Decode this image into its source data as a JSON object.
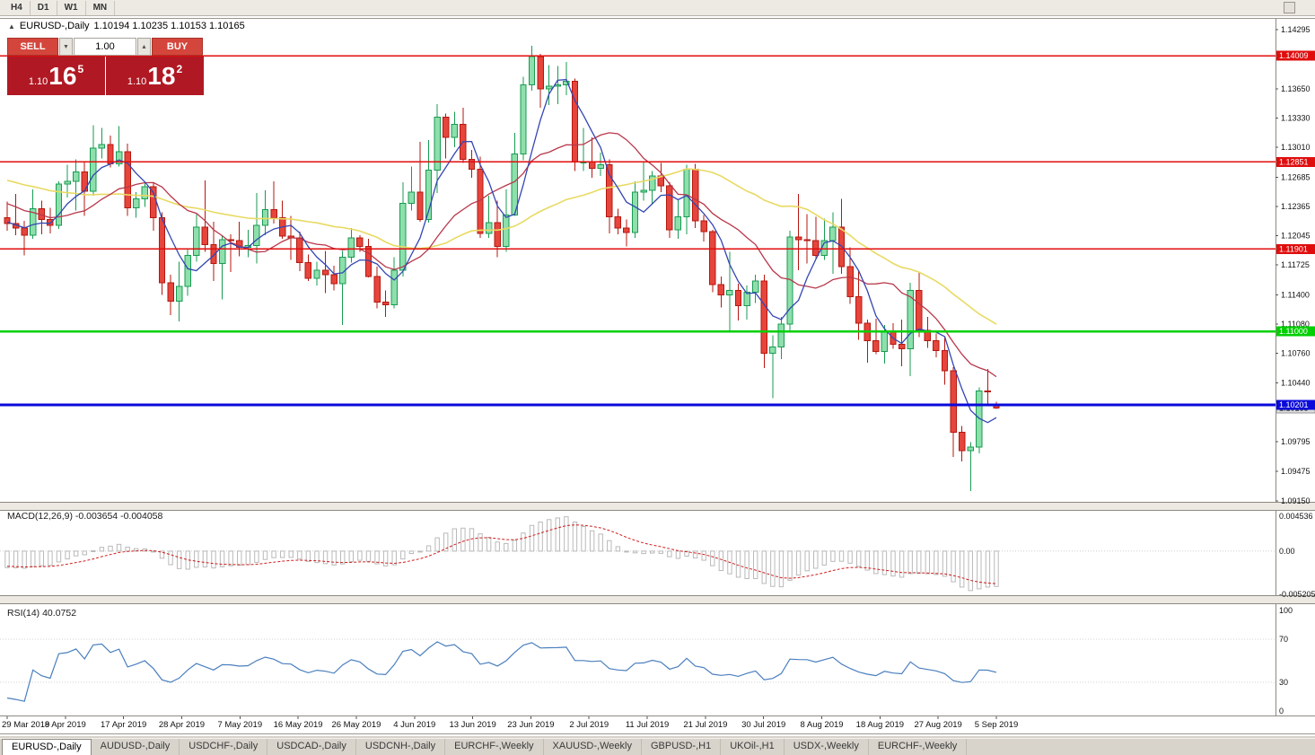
{
  "icons": {
    "collapse": "▲",
    "spinner_up": "▲",
    "spinner_down": "▼"
  },
  "colors": {
    "bull_fill": "#8edfac",
    "bull_stroke": "#189b52",
    "bear_fill": "#e6453c",
    "bear_stroke": "#b5170f",
    "ma_fast": "#3346b3",
    "ma_mid": "#b8374a",
    "ma_slow": "#e8da63",
    "level_red": "#e00d0d",
    "level_green": "#00cf00",
    "level_blue": "#0a0adb",
    "macd_hist": "#b9b9b9",
    "macd_signal": "#cf1d1d",
    "rsi_line": "#4a7fbe",
    "sell_buy_red": "#d4463c",
    "quote_red": "#b01823"
  },
  "toolbar": {
    "timeframes": [
      "H4",
      "D1",
      "W1",
      "MN"
    ]
  },
  "chart_header": {
    "title": "EURUSD-,Daily",
    "ohlc": "1.10194 1.10235 1.10153 1.10165"
  },
  "one_click": {
    "sell_label": "SELL",
    "buy_label": "BUY",
    "lot_value": "1.00",
    "sell_pre": "1.10",
    "sell_big": "16",
    "sell_sup": "5",
    "buy_pre": "1.10",
    "buy_big": "18",
    "buy_sup": "2"
  },
  "price_axis": {
    "ticks": [
      "1.14295",
      "1.13650",
      "1.13330",
      "1.13010",
      "1.12685",
      "1.12365",
      "1.12045",
      "1.11725",
      "1.11400",
      "1.11080",
      "1.10760",
      "1.10440",
      "1.09795",
      "1.09475",
      "1.09150"
    ]
  },
  "levels": [
    {
      "price": 1.14009,
      "label": "1.14009",
      "color": "red"
    },
    {
      "price": 1.12851,
      "label": "1.12851",
      "color": "red"
    },
    {
      "price": 1.11901,
      "label": "1.11901",
      "color": "red"
    },
    {
      "price": 1.11,
      "label": "1.11000",
      "color": "green"
    },
    {
      "price": 1.10201,
      "label": "1.10201",
      "color": "blue"
    }
  ],
  "current_price": {
    "label": "1.10165",
    "price": 1.10165
  },
  "macd_panel": {
    "label": "MACD(12,26,9) -0.003654 -0.004058",
    "axis": [
      "0.004536",
      "0.00",
      "-0.005205"
    ]
  },
  "rsi_panel": {
    "label": "RSI(14) 40.0752",
    "axis": [
      "100",
      "70",
      "30",
      "0"
    ]
  },
  "dates": [
    "29 Mar 2019",
    "8 Apr 2019",
    "17 Apr 2019",
    "28 Apr 2019",
    "7 May 2019",
    "16 May 2019",
    "26 May 2019",
    "4 Jun 2019",
    "13 Jun 2019",
    "23 Jun 2019",
    "2 Jul 2019",
    "11 Jul 2019",
    "21 Jul 2019",
    "30 Jul 2019",
    "8 Aug 2019",
    "18 Aug 2019",
    "27 Aug 2019",
    "5 Sep 2019"
  ],
  "tabs": [
    {
      "label": "EURUSD-,Daily",
      "active": true
    },
    {
      "label": "AUDUSD-,Daily",
      "active": false
    },
    {
      "label": "USDCHF-,Daily",
      "active": false
    },
    {
      "label": "USDCAD-,Daily",
      "active": false
    },
    {
      "label": "USDCNH-,Daily",
      "active": false
    },
    {
      "label": "EURCHF-,Weekly",
      "active": false
    },
    {
      "label": "XAUUSD-,Weekly",
      "active": false
    },
    {
      "label": "GBPUSD-,H1",
      "active": false
    },
    {
      "label": "UKOil-,H1",
      "active": false
    },
    {
      "label": "USDX-,Weekly",
      "active": false
    },
    {
      "label": "EURCHF-,Weekly",
      "active": false
    }
  ],
  "chart_data": {
    "type": "candlestick",
    "symbol": "EURUSD-",
    "timeframe": "Daily",
    "scale": {
      "p_max": 1.14295,
      "p_min": 1.0915
    },
    "ma_periods": {
      "fast": 5,
      "mid": 13,
      "slow": 34
    },
    "macd": {
      "fast": 12,
      "slow": 26,
      "signal": 9,
      "max": 0.004536,
      "min": -0.005205
    },
    "rsi_period": 14,
    "seed": {
      "start": 1.138,
      "end": 1.1225,
      "count": 60
    },
    "candles": [
      [
        1.1224,
        1.1242,
        1.121,
        1.1218
      ],
      [
        1.1218,
        1.125,
        1.1205,
        1.1213
      ],
      [
        1.1213,
        1.1221,
        1.1183,
        1.1205
      ],
      [
        1.1205,
        1.1255,
        1.1201,
        1.1234
      ],
      [
        1.1234,
        1.1243,
        1.1206,
        1.1222
      ],
      [
        1.1222,
        1.1235,
        1.1207,
        1.1216
      ],
      [
        1.1216,
        1.1264,
        1.1212,
        1.1261
      ],
      [
        1.1261,
        1.1282,
        1.1246,
        1.1264
      ],
      [
        1.1264,
        1.1288,
        1.1232,
        1.1274
      ],
      [
        1.1274,
        1.1285,
        1.1226,
        1.1253
      ],
      [
        1.1253,
        1.1325,
        1.1248,
        1.13
      ],
      [
        1.13,
        1.1322,
        1.1289,
        1.1304
      ],
      [
        1.1304,
        1.1314,
        1.1279,
        1.1283
      ],
      [
        1.1283,
        1.1324,
        1.128,
        1.1296
      ],
      [
        1.1296,
        1.1305,
        1.1226,
        1.1235
      ],
      [
        1.1235,
        1.1252,
        1.1224,
        1.1245
      ],
      [
        1.1245,
        1.1262,
        1.1236,
        1.1258
      ],
      [
        1.1258,
        1.1262,
        1.121,
        1.1224
      ],
      [
        1.1224,
        1.123,
        1.114,
        1.1153
      ],
      [
        1.1153,
        1.1162,
        1.1118,
        1.1133
      ],
      [
        1.1133,
        1.1176,
        1.1111,
        1.1149
      ],
      [
        1.1149,
        1.119,
        1.1139,
        1.1183
      ],
      [
        1.1183,
        1.1228,
        1.1176,
        1.1214
      ],
      [
        1.1214,
        1.1265,
        1.1187,
        1.1195
      ],
      [
        1.1195,
        1.122,
        1.1155,
        1.1174
      ],
      [
        1.1174,
        1.1205,
        1.1135,
        1.12
      ],
      [
        1.12,
        1.1206,
        1.1165,
        1.1199
      ],
      [
        1.1199,
        1.122,
        1.1182,
        1.1192
      ],
      [
        1.1192,
        1.1211,
        1.1181,
        1.1194
      ],
      [
        1.1194,
        1.1251,
        1.1174,
        1.1216
      ],
      [
        1.1216,
        1.1254,
        1.1205,
        1.1233
      ],
      [
        1.1233,
        1.1264,
        1.1218,
        1.1224
      ],
      [
        1.1224,
        1.1243,
        1.1201,
        1.1204
      ],
      [
        1.1204,
        1.1226,
        1.1178,
        1.1202
      ],
      [
        1.1202,
        1.1209,
        1.1166,
        1.1175
      ],
      [
        1.1175,
        1.1184,
        1.1155,
        1.1158
      ],
      [
        1.1158,
        1.1176,
        1.115,
        1.1167
      ],
      [
        1.1167,
        1.1188,
        1.1142,
        1.1162
      ],
      [
        1.1162,
        1.1172,
        1.1145,
        1.1152
      ],
      [
        1.1152,
        1.1188,
        1.1107,
        1.1181
      ],
      [
        1.1181,
        1.1213,
        1.1175,
        1.1202
      ],
      [
        1.1202,
        1.1205,
        1.1187,
        1.1193
      ],
      [
        1.1193,
        1.1201,
        1.1159,
        1.116
      ],
      [
        1.116,
        1.1171,
        1.1125,
        1.1132
      ],
      [
        1.1132,
        1.1145,
        1.1116,
        1.1129
      ],
      [
        1.1129,
        1.1181,
        1.1125,
        1.1167
      ],
      [
        1.1167,
        1.1263,
        1.116,
        1.124
      ],
      [
        1.124,
        1.128,
        1.1232,
        1.1252
      ],
      [
        1.1252,
        1.1307,
        1.122,
        1.1222
      ],
      [
        1.1222,
        1.1309,
        1.1219,
        1.1276
      ],
      [
        1.1276,
        1.1348,
        1.1251,
        1.1334
      ],
      [
        1.1334,
        1.1338,
        1.1289,
        1.1312
      ],
      [
        1.1312,
        1.134,
        1.1301,
        1.1326
      ],
      [
        1.1326,
        1.1344,
        1.1284,
        1.1288
      ],
      [
        1.1288,
        1.1298,
        1.1268,
        1.1277
      ],
      [
        1.1277,
        1.1291,
        1.1202,
        1.1207
      ],
      [
        1.1207,
        1.1248,
        1.1202,
        1.1219
      ],
      [
        1.1219,
        1.1243,
        1.1181,
        1.1193
      ],
      [
        1.1193,
        1.1255,
        1.1187,
        1.1227
      ],
      [
        1.1227,
        1.1317,
        1.1226,
        1.1294
      ],
      [
        1.1294,
        1.1378,
        1.1287,
        1.1369
      ],
      [
        1.1369,
        1.1412,
        1.1363,
        1.14
      ],
      [
        1.14,
        1.1403,
        1.1344,
        1.1365
      ],
      [
        1.1365,
        1.1391,
        1.1347,
        1.1368
      ],
      [
        1.1368,
        1.139,
        1.1348,
        1.1369
      ],
      [
        1.1369,
        1.1394,
        1.1358,
        1.1373
      ],
      [
        1.1373,
        1.1376,
        1.1275,
        1.1285
      ],
      [
        1.1285,
        1.1322,
        1.1275,
        1.1285
      ],
      [
        1.1285,
        1.1312,
        1.1268,
        1.1278
      ],
      [
        1.1278,
        1.1295,
        1.127,
        1.1282
      ],
      [
        1.1282,
        1.1288,
        1.1207,
        1.1225
      ],
      [
        1.1225,
        1.1234,
        1.1206,
        1.1213
      ],
      [
        1.1213,
        1.1222,
        1.1193,
        1.1208
      ],
      [
        1.1208,
        1.1264,
        1.1202,
        1.1252
      ],
      [
        1.1252,
        1.1286,
        1.1243,
        1.1254
      ],
      [
        1.1254,
        1.1275,
        1.1239,
        1.127
      ],
      [
        1.127,
        1.1284,
        1.1252,
        1.1259
      ],
      [
        1.1259,
        1.1263,
        1.1202,
        1.1211
      ],
      [
        1.1211,
        1.1244,
        1.1201,
        1.1225
      ],
      [
        1.1225,
        1.1282,
        1.1206,
        1.1277
      ],
      [
        1.1277,
        1.1283,
        1.1213,
        1.1221
      ],
      [
        1.1221,
        1.1227,
        1.1198,
        1.1209
      ],
      [
        1.1209,
        1.1211,
        1.1143,
        1.1151
      ],
      [
        1.1151,
        1.116,
        1.1126,
        1.114
      ],
      [
        1.114,
        1.1187,
        1.1101,
        1.1145
      ],
      [
        1.1145,
        1.1152,
        1.1112,
        1.1128
      ],
      [
        1.1128,
        1.115,
        1.1113,
        1.1143
      ],
      [
        1.1143,
        1.1162,
        1.1131,
        1.1155
      ],
      [
        1.1155,
        1.1162,
        1.106,
        1.1076
      ],
      [
        1.1076,
        1.1096,
        1.1027,
        1.1083
      ],
      [
        1.1083,
        1.1116,
        1.107,
        1.1108
      ],
      [
        1.1108,
        1.121,
        1.1101,
        1.1203
      ],
      [
        1.1203,
        1.125,
        1.1167,
        1.12
      ],
      [
        1.12,
        1.1228,
        1.1174,
        1.1199
      ],
      [
        1.1199,
        1.1225,
        1.118,
        1.1183
      ],
      [
        1.1183,
        1.1223,
        1.1178,
        1.1199
      ],
      [
        1.1199,
        1.123,
        1.1163,
        1.1214
      ],
      [
        1.1214,
        1.1245,
        1.1163,
        1.1171
      ],
      [
        1.1171,
        1.1192,
        1.113,
        1.1138
      ],
      [
        1.1138,
        1.1167,
        1.1091,
        1.1109
      ],
      [
        1.1109,
        1.1113,
        1.1066,
        1.109
      ],
      [
        1.109,
        1.1114,
        1.1075,
        1.1078
      ],
      [
        1.1078,
        1.1107,
        1.1065,
        1.11
      ],
      [
        1.11,
        1.1109,
        1.1081,
        1.1086
      ],
      [
        1.1086,
        1.1113,
        1.1062,
        1.1081
      ],
      [
        1.1081,
        1.1153,
        1.1051,
        1.1145
      ],
      [
        1.1145,
        1.1164,
        1.1094,
        1.1101
      ],
      [
        1.1101,
        1.1116,
        1.1082,
        1.109
      ],
      [
        1.109,
        1.1098,
        1.1072,
        1.1079
      ],
      [
        1.1079,
        1.1094,
        1.1042,
        1.1057
      ],
      [
        1.1057,
        1.1061,
        1.0963,
        1.099
      ],
      [
        1.099,
        1.0997,
        1.0958,
        1.097
      ],
      [
        1.097,
        1.0979,
        1.0926,
        1.0974
      ],
      [
        1.0974,
        1.1039,
        1.0967,
        1.1035
      ],
      [
        1.1035,
        1.1059,
        1.102,
        1.1034
      ],
      [
        1.10194,
        1.10235,
        1.10153,
        1.10165
      ]
    ]
  }
}
